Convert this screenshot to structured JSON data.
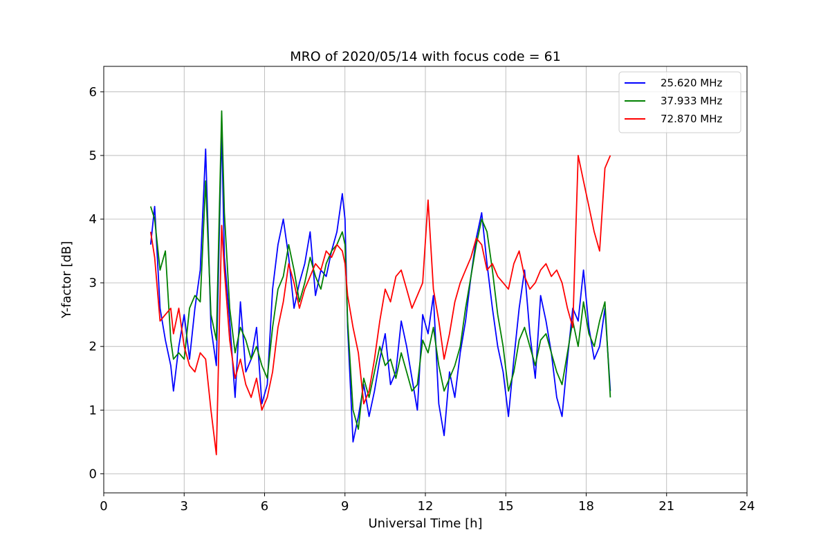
{
  "chart_data": {
    "type": "line",
    "title": "MRO of 2020/05/14 with focus code = 61",
    "xlabel": "Universal Time [h]",
    "ylabel": "Y-factor [dB]",
    "xlim": [
      0,
      24
    ],
    "ylim": [
      -0.3,
      6.4
    ],
    "xticks": [
      0,
      3,
      6,
      9,
      12,
      15,
      18,
      21,
      24
    ],
    "yticks": [
      0,
      1,
      2,
      3,
      4,
      5,
      6
    ],
    "grid": true,
    "legend_position": "top-right",
    "series": [
      {
        "name": "25.620 MHz",
        "color": "#0000ff",
        "x": [
          1.75,
          1.9,
          2.1,
          2.3,
          2.5,
          2.6,
          2.8,
          3.0,
          3.2,
          3.4,
          3.6,
          3.8,
          4.0,
          4.2,
          4.4,
          4.5,
          4.7,
          4.9,
          5.1,
          5.3,
          5.5,
          5.7,
          5.9,
          6.1,
          6.3,
          6.5,
          6.7,
          6.9,
          7.1,
          7.3,
          7.5,
          7.7,
          7.9,
          8.1,
          8.3,
          8.5,
          8.7,
          8.9,
          9.0,
          9.1,
          9.3,
          9.5,
          9.7,
          9.9,
          10.1,
          10.3,
          10.5,
          10.7,
          10.9,
          11.1,
          11.3,
          11.5,
          11.7,
          11.9,
          12.1,
          12.3,
          12.5,
          12.7,
          12.9,
          13.1,
          13.3,
          13.5,
          13.7,
          13.9,
          14.1,
          14.3,
          14.5,
          14.7,
          14.9,
          15.1,
          15.3,
          15.5,
          15.7,
          15.9,
          16.1,
          16.3,
          16.5,
          16.7,
          16.9,
          17.1,
          17.3,
          17.5,
          17.7,
          17.9,
          18.1,
          18.3,
          18.5,
          18.7,
          18.9
        ],
        "y": [
          3.6,
          4.2,
          2.6,
          2.1,
          1.7,
          1.3,
          2.0,
          2.5,
          1.8,
          2.6,
          3.2,
          5.1,
          2.3,
          1.7,
          5.4,
          3.4,
          2.4,
          1.2,
          2.7,
          1.6,
          1.8,
          2.3,
          1.1,
          1.4,
          2.9,
          3.6,
          4.0,
          3.4,
          2.6,
          3.0,
          3.3,
          3.8,
          2.8,
          3.2,
          3.1,
          3.5,
          3.8,
          4.4,
          4.0,
          2.3,
          0.5,
          0.9,
          1.4,
          0.9,
          1.3,
          1.8,
          2.2,
          1.4,
          1.6,
          2.4,
          2.0,
          1.5,
          1.0,
          2.5,
          2.2,
          2.8,
          1.1,
          0.6,
          1.6,
          1.2,
          1.9,
          2.4,
          3.1,
          3.7,
          4.1,
          3.3,
          2.6,
          2.0,
          1.6,
          0.9,
          1.8,
          2.6,
          3.2,
          2.2,
          1.5,
          2.8,
          2.4,
          1.9,
          1.2,
          0.9,
          1.8,
          2.6,
          2.4,
          3.2,
          2.3,
          1.8,
          2.0,
          2.6,
          1.3
        ]
      },
      {
        "name": "37.933 MHz",
        "color": "#008000",
        "x": [
          1.75,
          1.9,
          2.1,
          2.3,
          2.5,
          2.6,
          2.8,
          3.0,
          3.2,
          3.4,
          3.6,
          3.8,
          4.0,
          4.2,
          4.4,
          4.5,
          4.7,
          4.9,
          5.1,
          5.3,
          5.5,
          5.7,
          5.9,
          6.1,
          6.3,
          6.5,
          6.7,
          6.9,
          7.1,
          7.3,
          7.5,
          7.7,
          7.9,
          8.1,
          8.3,
          8.5,
          8.7,
          8.9,
          9.0,
          9.1,
          9.3,
          9.5,
          9.7,
          9.9,
          10.1,
          10.3,
          10.5,
          10.7,
          10.9,
          11.1,
          11.3,
          11.5,
          11.7,
          11.9,
          12.1,
          12.3,
          12.5,
          12.7,
          12.9,
          13.1,
          13.3,
          13.5,
          13.7,
          13.9,
          14.1,
          14.3,
          14.5,
          14.7,
          14.9,
          15.1,
          15.3,
          15.5,
          15.7,
          15.9,
          16.1,
          16.3,
          16.5,
          16.7,
          16.9,
          17.1,
          17.3,
          17.5,
          17.7,
          17.9,
          18.1,
          18.3,
          18.5,
          18.7,
          18.9
        ],
        "y": [
          4.2,
          4.0,
          3.2,
          3.5,
          2.1,
          1.8,
          1.9,
          1.8,
          2.6,
          2.8,
          2.7,
          4.6,
          2.5,
          2.1,
          5.7,
          4.1,
          2.6,
          1.9,
          2.3,
          2.1,
          1.8,
          2.0,
          1.7,
          1.5,
          2.3,
          2.9,
          3.1,
          3.6,
          3.2,
          2.7,
          3.0,
          3.4,
          3.1,
          2.9,
          3.3,
          3.5,
          3.6,
          3.8,
          3.6,
          2.4,
          1.0,
          0.7,
          1.5,
          1.2,
          1.6,
          2.0,
          1.7,
          1.8,
          1.5,
          1.9,
          1.6,
          1.3,
          1.4,
          2.1,
          1.9,
          2.3,
          1.7,
          1.3,
          1.5,
          1.7,
          2.0,
          2.6,
          3.1,
          3.6,
          4.0,
          3.8,
          3.2,
          2.5,
          2.0,
          1.3,
          1.6,
          2.1,
          2.3,
          2.0,
          1.7,
          2.1,
          2.2,
          1.9,
          1.6,
          1.4,
          1.9,
          2.4,
          2.0,
          2.7,
          2.2,
          2.0,
          2.4,
          2.7,
          1.2
        ]
      },
      {
        "name": "72.870 MHz",
        "color": "#ff0000",
        "x": [
          1.75,
          1.9,
          2.1,
          2.3,
          2.5,
          2.6,
          2.8,
          3.0,
          3.2,
          3.4,
          3.6,
          3.8,
          4.0,
          4.2,
          4.4,
          4.5,
          4.7,
          4.9,
          5.1,
          5.3,
          5.5,
          5.7,
          5.9,
          6.1,
          6.3,
          6.5,
          6.7,
          6.9,
          7.1,
          7.3,
          7.5,
          7.7,
          7.9,
          8.1,
          8.3,
          8.5,
          8.7,
          8.9,
          9.0,
          9.1,
          9.3,
          9.5,
          9.7,
          9.9,
          10.1,
          10.3,
          10.5,
          10.7,
          10.9,
          11.1,
          11.3,
          11.5,
          11.7,
          11.9,
          12.1,
          12.3,
          12.5,
          12.7,
          12.9,
          13.1,
          13.3,
          13.5,
          13.7,
          13.9,
          14.1,
          14.3,
          14.5,
          14.7,
          14.9,
          15.1,
          15.3,
          15.5,
          15.7,
          15.9,
          16.1,
          16.3,
          16.5,
          16.7,
          16.9,
          17.1,
          17.3,
          17.5,
          17.7,
          17.9,
          18.1,
          18.3,
          18.5,
          18.7,
          18.9
        ],
        "y": [
          3.8,
          3.4,
          2.4,
          2.5,
          2.6,
          2.2,
          2.6,
          2.0,
          1.7,
          1.6,
          1.9,
          1.8,
          1.0,
          0.3,
          3.9,
          3.2,
          2.1,
          1.5,
          1.8,
          1.4,
          1.2,
          1.5,
          1.0,
          1.2,
          1.6,
          2.3,
          2.7,
          3.3,
          3.0,
          2.6,
          2.9,
          3.1,
          3.3,
          3.2,
          3.5,
          3.4,
          3.6,
          3.5,
          3.3,
          2.8,
          2.3,
          1.9,
          1.1,
          1.3,
          1.8,
          2.4,
          2.9,
          2.7,
          3.1,
          3.2,
          2.9,
          2.6,
          2.8,
          3.0,
          4.3,
          2.9,
          2.4,
          1.8,
          2.2,
          2.7,
          3.0,
          3.2,
          3.4,
          3.7,
          3.6,
          3.2,
          3.3,
          3.1,
          3.0,
          2.9,
          3.3,
          3.5,
          3.1,
          2.9,
          3.0,
          3.2,
          3.3,
          3.1,
          3.2,
          3.0,
          2.6,
          2.3,
          5.0,
          4.6,
          4.2,
          3.8,
          3.5,
          4.8,
          5.0
        ]
      }
    ]
  }
}
